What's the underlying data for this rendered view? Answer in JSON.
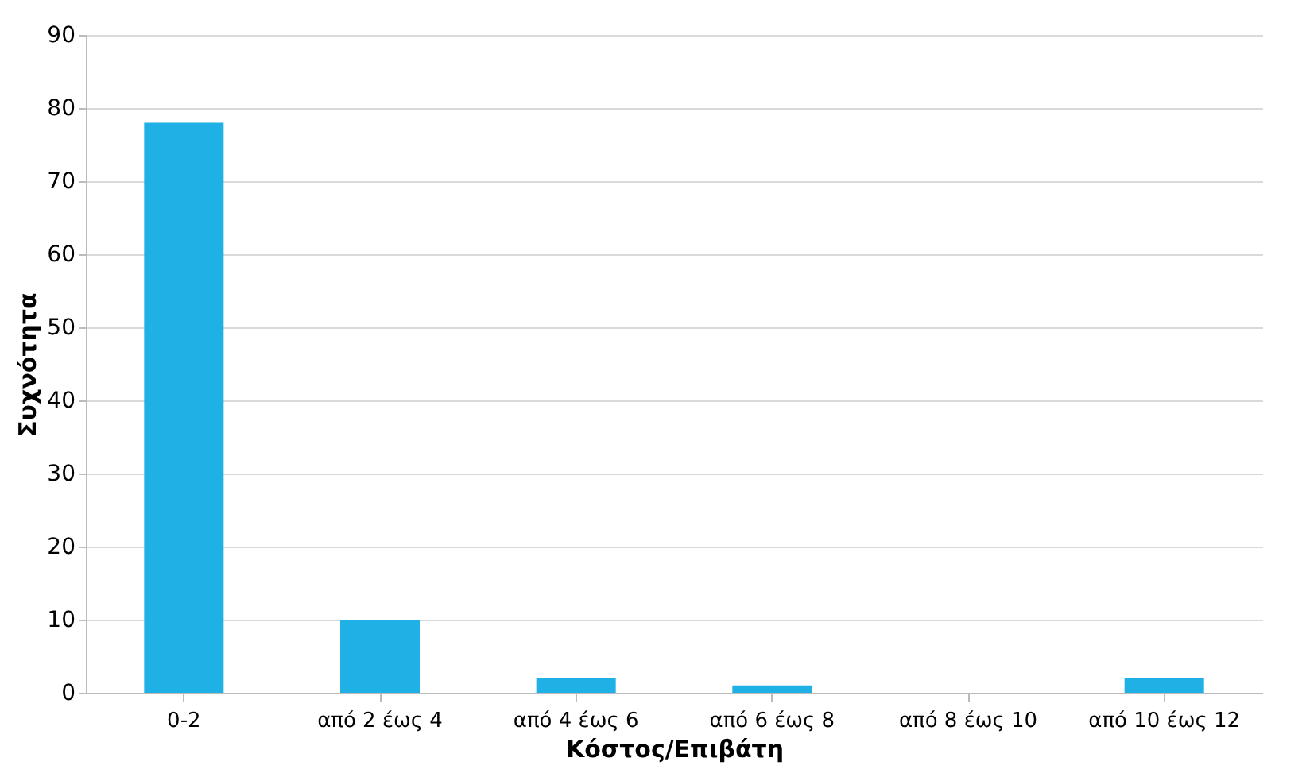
{
  "chart_data": {
    "type": "bar",
    "xlabel": "Κόστος/Επιβάτη",
    "ylabel": "Συχνότητα",
    "categories": [
      "0-2",
      "από 2 έως 4",
      "από 4 έως 6",
      "από 6 έως 8",
      "από 8 έως 10",
      "από 10 έως 12"
    ],
    "values": [
      78,
      10,
      2,
      1,
      0,
      2
    ],
    "color": "#1fb0e6",
    "ylim": [
      0,
      90
    ],
    "yticks": [
      0,
      10,
      20,
      30,
      40,
      50,
      60,
      70,
      80,
      90
    ],
    "grid": "y"
  }
}
